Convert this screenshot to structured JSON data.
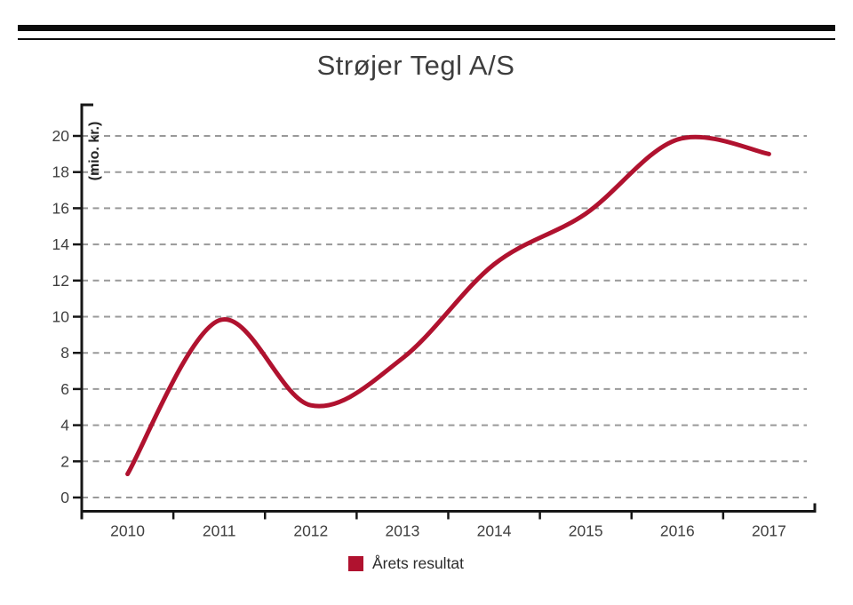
{
  "header": {
    "title": "Strøjer Tegl A/S"
  },
  "chart_data": {
    "type": "line",
    "title": "Strøjer Tegl A/S",
    "categories": [
      "2010",
      "2011",
      "2012",
      "2013",
      "2014",
      "2015",
      "2016",
      "2017"
    ],
    "series": [
      {
        "name": "Årets resultat",
        "values": [
          1.3,
          9.8,
          5.1,
          7.7,
          12.9,
          15.7,
          19.8,
          19.0
        ],
        "color": "#b0122f"
      }
    ],
    "xlabel": "",
    "ylabel": "(mio. kr.)",
    "yticks": [
      0,
      2,
      4,
      6,
      8,
      10,
      12,
      14,
      16,
      18,
      20
    ],
    "ylim": [
      0,
      21.5
    ],
    "grid": "horizontal-dashed",
    "gridline_color": "#999999",
    "axis_color": "#161616",
    "tick_label_color": "#3f3f3f",
    "legend_position": "bottom",
    "line_smoothing": "spline"
  },
  "legend": {
    "label": "Årets resultat",
    "swatch_color": "#b0122f"
  }
}
